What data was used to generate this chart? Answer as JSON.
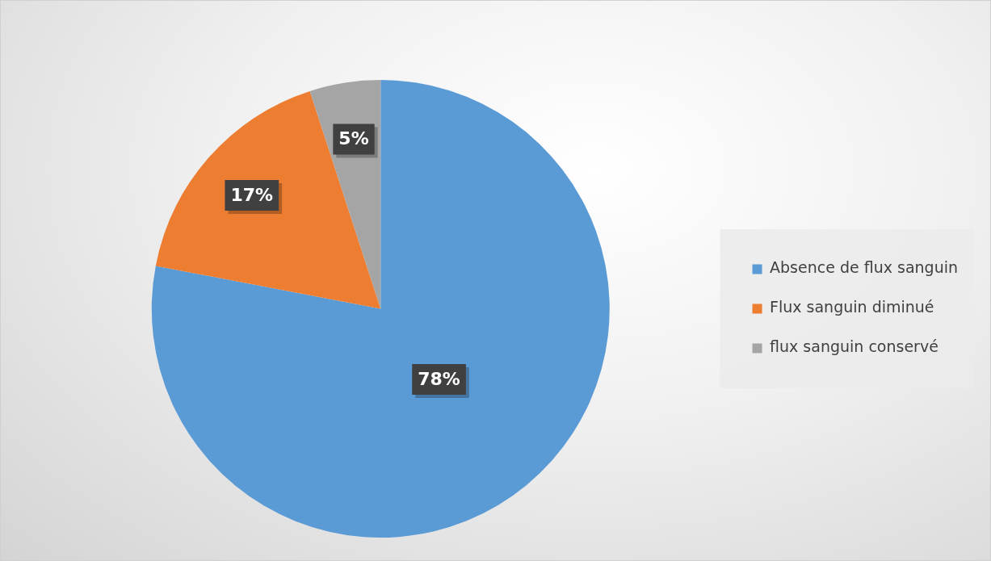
{
  "chart_data": {
    "type": "pie",
    "categories": [
      "Absence de flux sanguin",
      "Flux sanguin diminué",
      "flux sanguin conservé"
    ],
    "values": [
      78,
      17,
      5
    ],
    "colors": [
      "#5b9bd5",
      "#ed7d31",
      "#a5a5a5"
    ],
    "value_labels": [
      "78%",
      "17%",
      "5%"
    ],
    "legend": "right"
  }
}
